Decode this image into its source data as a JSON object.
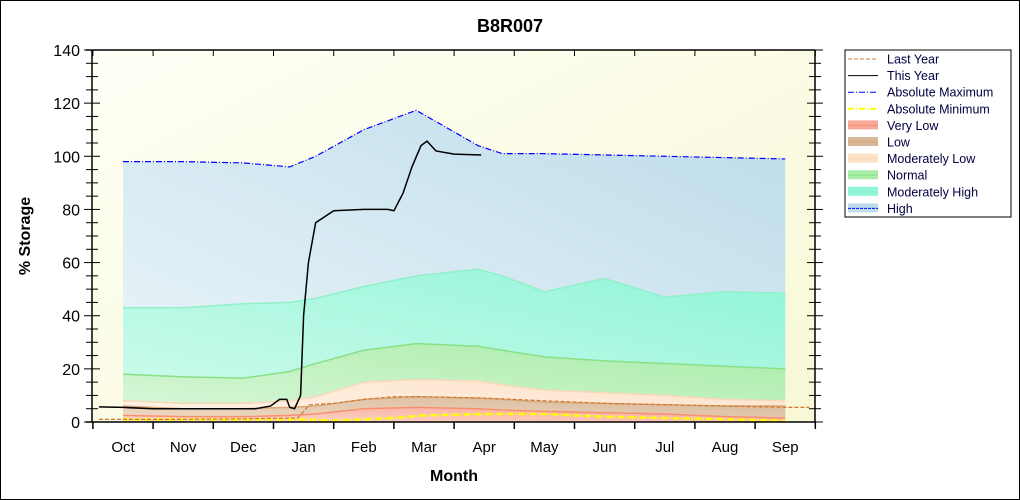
{
  "chart_data": {
    "type": "area",
    "title": "B8R007",
    "xlabel": "Month",
    "ylabel": "% Storage",
    "ylim": [
      0,
      140
    ],
    "yticks": [
      0,
      20,
      40,
      60,
      80,
      100,
      120,
      140
    ],
    "categories": [
      "Oct",
      "Nov",
      "Dec",
      "Jan",
      "Feb",
      "Mar",
      "Apr",
      "May",
      "Jun",
      "Jul",
      "Aug",
      "Sep"
    ],
    "legend_position": "right",
    "bands_x": [
      0,
      1,
      2,
      2.77,
      3.2,
      4,
      4.87,
      5.9,
      6.3,
      7,
      8,
      9,
      10,
      11
    ],
    "bands": [
      {
        "name": "High",
        "color_top": "#bcdcea",
        "color_bottom": "#eef6fa",
        "edge": "#0000ff",
        "upper": [
          98,
          98,
          97.5,
          96,
          100,
          110,
          117.3,
          104,
          101,
          101,
          100.5,
          100,
          99.5,
          99
        ]
      },
      {
        "name": "Moderately High",
        "color_top": "#8ff5d8",
        "color_bottom": "#d4fbee",
        "edge": "#90f0c8",
        "upper": [
          43,
          43,
          44.5,
          45,
          46.5,
          51,
          55,
          57.5,
          55,
          49,
          54,
          47,
          49,
          48.5
        ]
      },
      {
        "name": "Normal",
        "color_top": "#a8eca8",
        "color_bottom": "#dcf8dc",
        "edge": "#88e088",
        "upper": [
          18,
          17,
          16.5,
          19,
          22,
          27,
          29.5,
          28.5,
          27,
          24.5,
          23,
          22,
          21,
          20
        ]
      },
      {
        "name": "Moderately Low",
        "color_top": "#fde2c8",
        "color_bottom": "#fff4ea",
        "edge": "#f8d8b8",
        "upper": [
          8,
          7,
          7,
          8,
          9.5,
          15,
          16,
          15.5,
          14,
          12,
          11,
          10,
          8.5,
          8
        ]
      },
      {
        "name": "Low",
        "color_top": "#d8b898",
        "color_bottom": "#f0dcc8",
        "edge": "#d8a878",
        "upper": [
          6,
          5,
          5,
          5.5,
          6,
          8.5,
          9.5,
          9,
          8.5,
          7.5,
          7,
          6.5,
          6,
          6
        ]
      },
      {
        "name": "Very Low",
        "color_top": "#f8a898",
        "color_bottom": "#fcd8cc",
        "edge": "#f89070",
        "upper": [
          2.5,
          2,
          2,
          2.5,
          3,
          5,
          5.5,
          5,
          4.5,
          4,
          3.5,
          3,
          2,
          1.5
        ]
      }
    ],
    "series": [
      {
        "name": "Last Year",
        "color": "#d07830",
        "style": "dashed",
        "x": [
          -0.4,
          1,
          2,
          2.9,
          3.1,
          3.5,
          4,
          4.5,
          5,
          6,
          7,
          8,
          9,
          10,
          11,
          11.4
        ],
        "y": [
          1,
          1,
          1.2,
          1.5,
          6.5,
          7,
          8.5,
          9.5,
          9.5,
          9,
          8,
          7,
          6.5,
          6,
          5.5,
          5.5
        ]
      },
      {
        "name": "This Year",
        "color": "#000000",
        "style": "solid",
        "x": [
          -0.4,
          0,
          0.5,
          1,
          1.5,
          2,
          2.2,
          2.45,
          2.6,
          2.72,
          2.77,
          2.85,
          2.95,
          3.0,
          3.08,
          3.2,
          3.5,
          4,
          4.4,
          4.5,
          4.65,
          4.8,
          4.95,
          5.05,
          5.2,
          5.5,
          5.95
        ],
        "y": [
          5.7,
          5.5,
          5,
          5,
          5,
          5,
          5,
          6,
          8.5,
          8.5,
          5.5,
          5,
          10,
          40,
          60,
          75,
          79.5,
          80,
          80,
          79.5,
          86,
          96,
          104,
          105.7,
          102,
          100.8,
          100.5
        ]
      },
      {
        "name": "Absolute Maximum",
        "color": "#0000ff",
        "style": "dashdot",
        "x": [
          0,
          1,
          2,
          2.77,
          3.2,
          4,
          4.87,
          5.9,
          6.3,
          7,
          8,
          9,
          10,
          11
        ],
        "y": [
          98,
          98,
          97.5,
          96,
          100,
          110,
          117.3,
          104,
          101,
          101,
          100.5,
          100,
          99.5,
          99
        ]
      },
      {
        "name": "Absolute Minimum",
        "color": "#ffff00",
        "style": "dashdot",
        "x": [
          0,
          1,
          2,
          3,
          3.5,
          4,
          4.5,
          5,
          6,
          7,
          8,
          9,
          10,
          11
        ],
        "y": [
          1,
          1,
          1,
          1,
          0.5,
          1,
          1.5,
          2.5,
          3,
          3,
          2,
          1.5,
          1,
          0.5
        ]
      }
    ],
    "legend": [
      "Last Year",
      "This Year",
      "Absolute Maximum",
      "Absolute Minimum",
      "Very Low",
      "Low",
      "Moderately Low",
      "Normal",
      "Moderately High",
      "High"
    ]
  }
}
